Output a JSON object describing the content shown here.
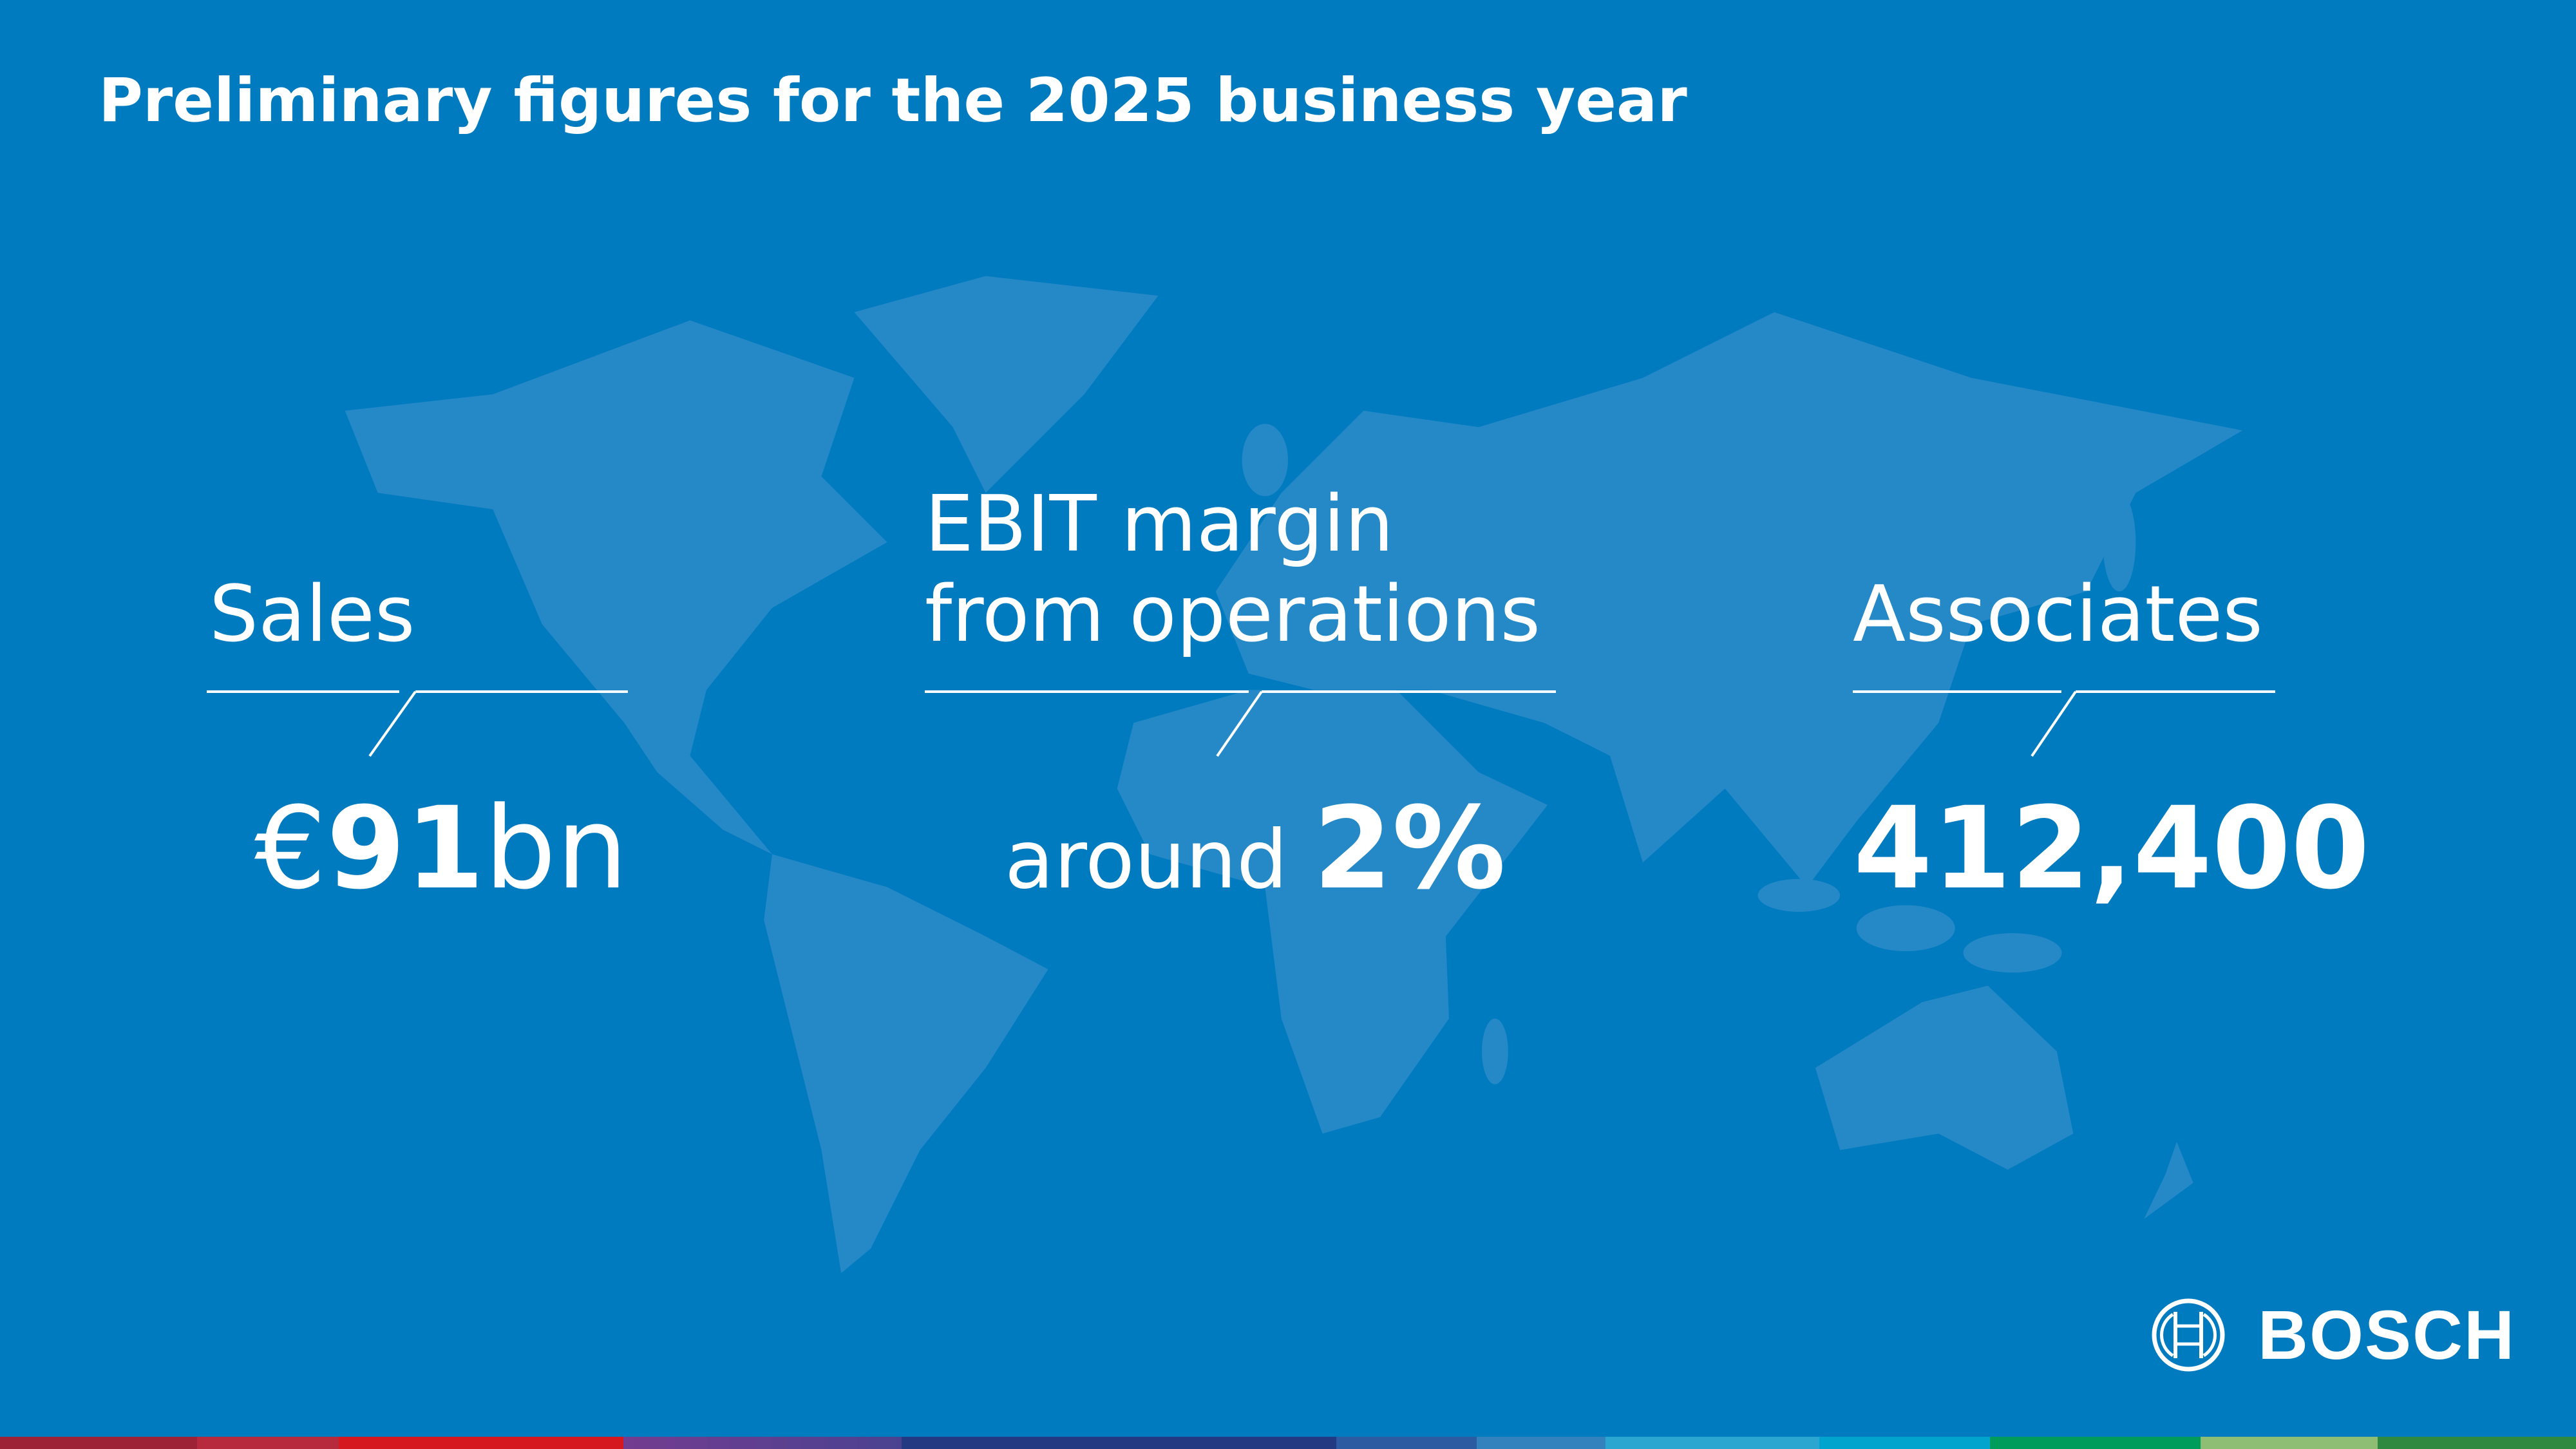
{
  "title": "Preliminary figures for the 2025 business year",
  "figures": [
    {
      "label": "Sales",
      "value_prefix": "€",
      "value_bold": "91",
      "value_suffix": "bn"
    },
    {
      "label_line1": "EBIT margin",
      "label_line2": "from operations",
      "value_prefix": "around ",
      "value_bold": "2%"
    },
    {
      "label": "Associates",
      "value_bold": "412,400"
    }
  ],
  "logo": {
    "text": "BOSCH"
  },
  "colors": {
    "background": "#007bc0",
    "map": "#2589c8",
    "text": "#ffffff",
    "stripe": [
      "#9e2235",
      "#b72a3e",
      "#d51820",
      "#733c90",
      "#3b3f8d",
      "#233a83",
      "#2d5ba2",
      "#3482bd",
      "#2aa6d1",
      "#00a4cc",
      "#009c5b",
      "#8dbe74",
      "#2f8a3f"
    ]
  }
}
